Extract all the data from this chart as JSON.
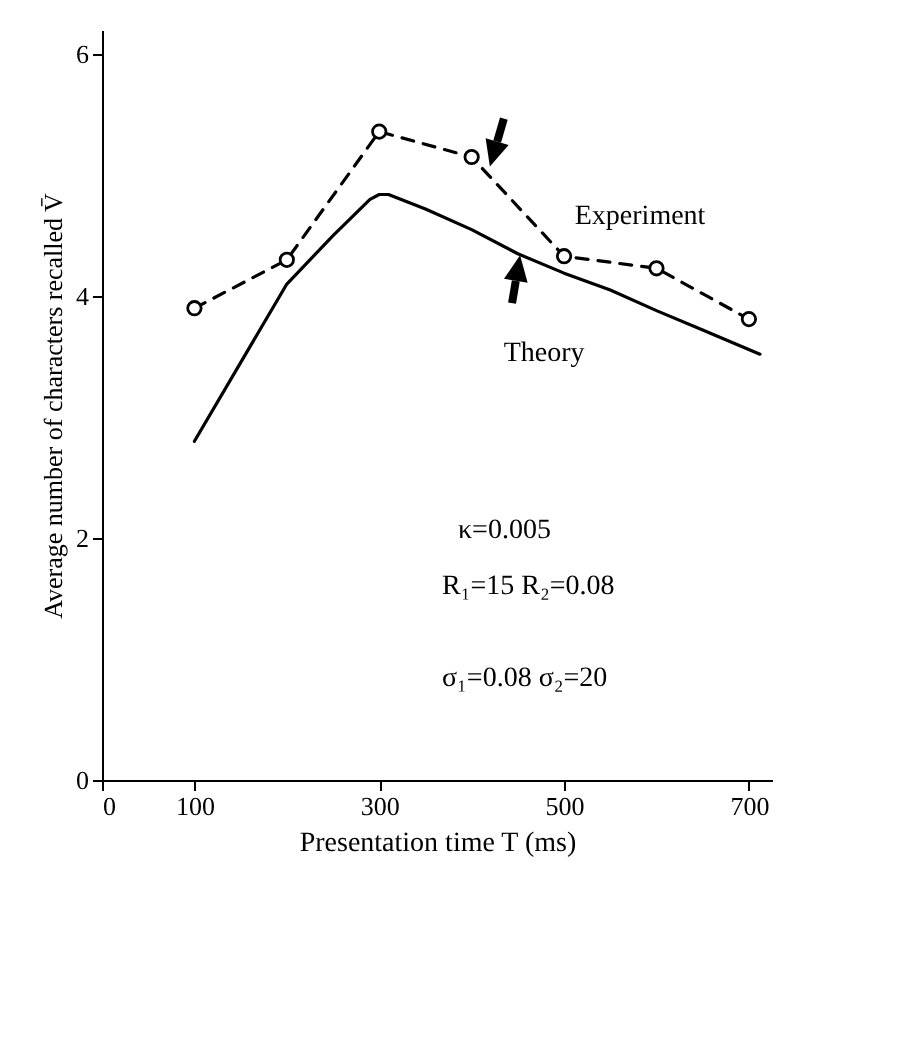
{
  "chart_data": {
    "type": "line",
    "xlabel": "Presentation time T (ms)",
    "ylabel": "Average number of characters recalled V̄",
    "xlim": [
      0,
      725
    ],
    "xticks": [
      0,
      100,
      300,
      500,
      700
    ],
    "ylim": [
      0,
      6.2
    ],
    "yticks": [
      0,
      2,
      4,
      6
    ],
    "grid": false,
    "series": [
      {
        "name": "Experiment",
        "color": "#000000",
        "marker": "circle",
        "line_style": "dashed",
        "x": [
          100,
          200,
          300,
          400,
          500,
          600,
          700
        ],
        "values": [
          3.9,
          4.3,
          5.36,
          5.15,
          4.33,
          4.23,
          3.81
        ]
      },
      {
        "name": "Theory",
        "color": "#000000",
        "marker": "none",
        "line_style": "solid",
        "x": [
          100,
          150,
          200,
          250,
          290,
          300,
          310,
          350,
          400,
          450,
          500,
          550,
          600,
          650,
          712
        ],
        "values": [
          2.8,
          3.45,
          4.1,
          4.5,
          4.8,
          4.84,
          4.84,
          4.72,
          4.55,
          4.35,
          4.19,
          4.05,
          3.88,
          3.72,
          3.52
        ]
      }
    ],
    "annotations": [
      "κ=0.005",
      "R₁=15  R₂=0.08",
      "σ₁=0.08  σ₂=20"
    ]
  }
}
